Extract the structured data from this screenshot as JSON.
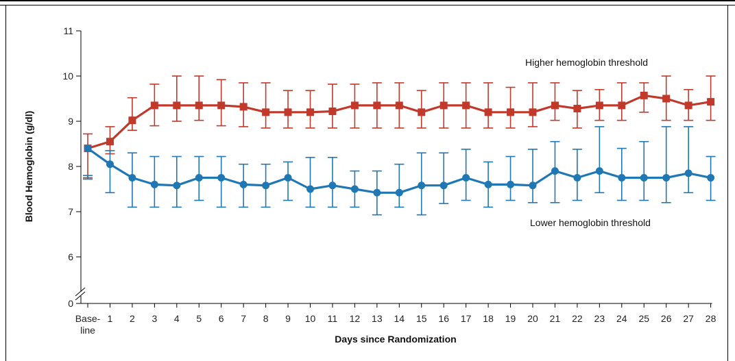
{
  "chart_data": {
    "type": "line",
    "xlabel": "Days since Randomization",
    "ylabel": "Blood Hemoglobin (g/dl)",
    "categories": [
      "Base-line",
      "1",
      "2",
      "3",
      "4",
      "5",
      "6",
      "7",
      "8",
      "9",
      "10",
      "11",
      "12",
      "13",
      "14",
      "15",
      "16",
      "17",
      "18",
      "19",
      "20",
      "21",
      "22",
      "23",
      "24",
      "25",
      "26",
      "27",
      "28"
    ],
    "category_label_lines": {
      "0": [
        "Base-",
        "line"
      ]
    },
    "y_ticks": [
      0,
      6,
      7,
      8,
      9,
      10,
      11
    ],
    "ylim": [
      5.3,
      11
    ],
    "y_axis_break": true,
    "grid": false,
    "legend": "none",
    "series": [
      {
        "name": "Higher hemoglobin threshold",
        "color": "#c0392b",
        "marker": "square",
        "values": [
          8.4,
          8.55,
          9.02,
          9.35,
          9.35,
          9.35,
          9.35,
          9.32,
          9.2,
          9.2,
          9.2,
          9.22,
          9.35,
          9.35,
          9.35,
          9.2,
          9.35,
          9.35,
          9.2,
          9.2,
          9.2,
          9.35,
          9.28,
          9.35,
          9.35,
          9.57,
          9.5,
          9.35,
          9.43
        ],
        "error_low": [
          7.75,
          8.28,
          8.8,
          8.9,
          9.0,
          9.02,
          8.9,
          8.88,
          8.85,
          8.85,
          8.85,
          8.85,
          8.85,
          8.85,
          8.85,
          8.85,
          8.85,
          8.85,
          8.85,
          8.85,
          8.88,
          9.02,
          8.85,
          9.02,
          9.02,
          9.2,
          9.02,
          9.02,
          9.02
        ],
        "error_high": [
          8.72,
          8.88,
          9.52,
          9.82,
          10.0,
          10.0,
          9.92,
          9.85,
          9.85,
          9.68,
          9.68,
          9.82,
          9.82,
          9.85,
          9.85,
          9.68,
          9.85,
          9.85,
          9.85,
          9.75,
          9.85,
          9.85,
          9.68,
          9.7,
          9.85,
          9.85,
          10.0,
          9.7,
          10.0
        ]
      },
      {
        "name": "Lower hemoglobin threshold",
        "color": "#1f77b4",
        "marker": "circle",
        "values": [
          8.4,
          8.05,
          7.75,
          7.6,
          7.58,
          7.75,
          7.75,
          7.6,
          7.58,
          7.75,
          7.5,
          7.58,
          7.5,
          7.42,
          7.42,
          7.58,
          7.58,
          7.75,
          7.6,
          7.6,
          7.58,
          7.9,
          7.75,
          7.9,
          7.75,
          7.75,
          7.75,
          7.85,
          7.75
        ],
        "error_low": [
          7.72,
          7.42,
          7.1,
          7.1,
          7.1,
          7.25,
          7.1,
          7.1,
          7.1,
          7.25,
          7.1,
          7.1,
          7.1,
          6.93,
          7.1,
          6.93,
          7.18,
          7.25,
          7.1,
          7.25,
          7.2,
          7.2,
          7.25,
          7.42,
          7.25,
          7.25,
          7.2,
          7.42,
          7.25
        ],
        "error_high": [
          7.8,
          8.35,
          8.3,
          8.22,
          8.22,
          8.22,
          8.22,
          8.05,
          8.05,
          8.1,
          8.2,
          8.2,
          7.9,
          7.9,
          8.05,
          8.3,
          8.3,
          8.38,
          8.1,
          8.22,
          8.38,
          8.55,
          8.38,
          8.88,
          8.4,
          8.55,
          8.88,
          8.88,
          8.22
        ]
      }
    ],
    "annotations": [
      {
        "text": "Higher hemoglobin threshold",
        "series": 0
      },
      {
        "text": "Lower hemoglobin threshold",
        "series": 1
      }
    ]
  }
}
